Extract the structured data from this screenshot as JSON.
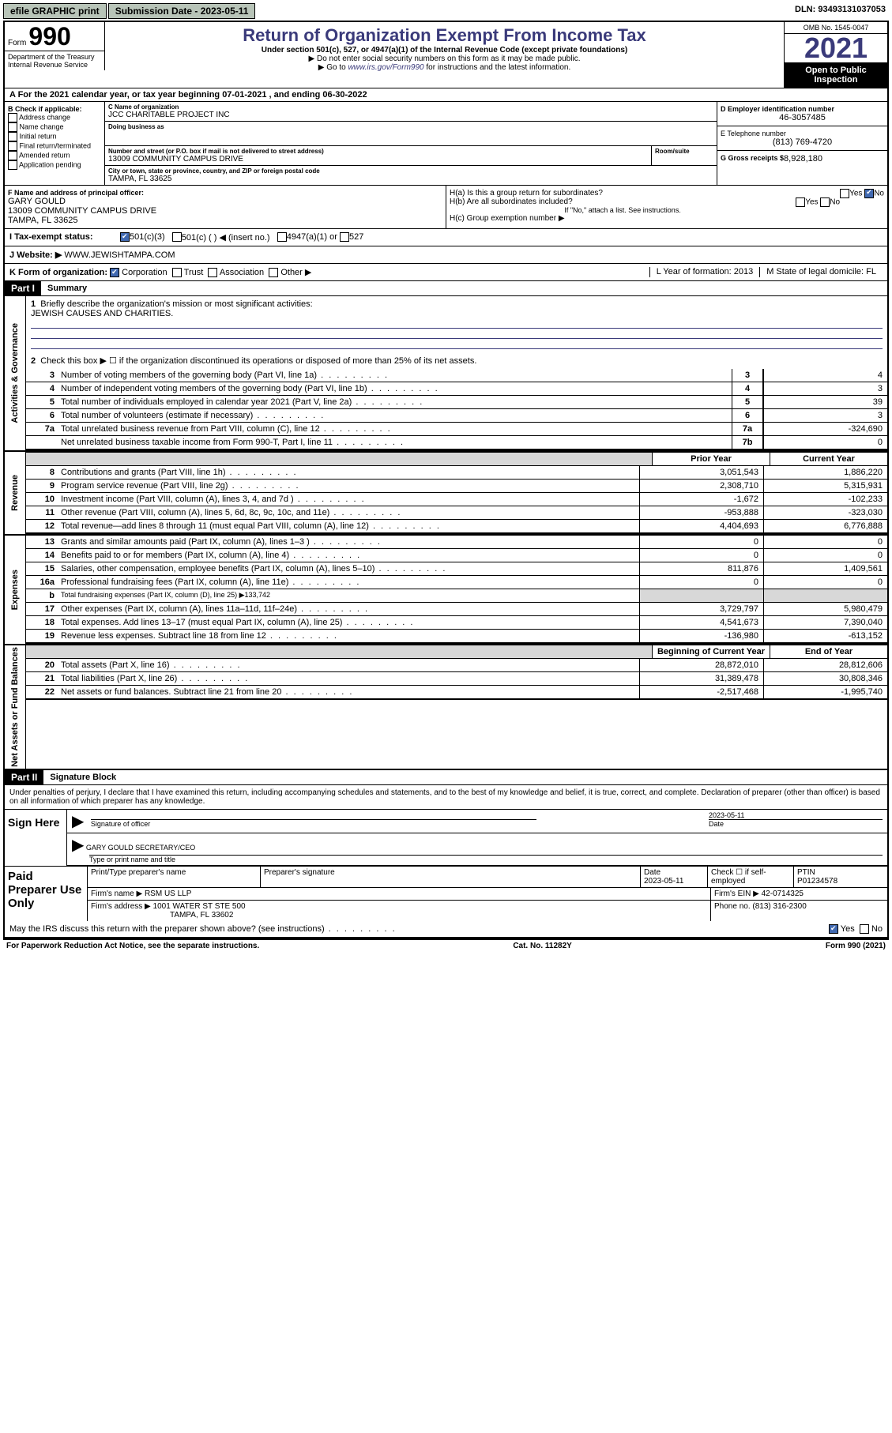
{
  "topbar": {
    "btn1": "efile GRAPHIC print",
    "sub_label": "Submission Date - 2023-05-11",
    "dln": "DLN: 93493131037053"
  },
  "header": {
    "form_label": "Form",
    "form_num": "990",
    "dept": "Department of the Treasury\nInternal Revenue Service",
    "title": "Return of Organization Exempt From Income Tax",
    "subtitle": "Under section 501(c), 527, or 4947(a)(1) of the Internal Revenue Code (except private foundations)",
    "note1": "▶ Do not enter social security numbers on this form as it may be made public.",
    "note2_pre": "▶ Go to ",
    "note2_link": "www.irs.gov/Form990",
    "note2_post": " for instructions and the latest information.",
    "omb": "OMB No. 1545-0047",
    "year": "2021",
    "inspection": "Open to Public Inspection"
  },
  "lineA": "A For the 2021 calendar year, or tax year beginning 07-01-2021   , and ending 06-30-2022",
  "sectionB": {
    "label": "B Check if applicable:",
    "opts": [
      "Address change",
      "Name change",
      "Initial return",
      "Final return/terminated",
      "Amended return",
      "Application pending"
    ],
    "c_label": "C Name of organization",
    "c_name": "JCC CHARITABLE PROJECT INC",
    "dba_label": "Doing business as",
    "addr_label": "Number and street (or P.O. box if mail is not delivered to street address)",
    "room_label": "Room/suite",
    "addr": "13009 COMMUNITY CAMPUS DRIVE",
    "city_label": "City or town, state or province, country, and ZIP or foreign postal code",
    "city": "TAMPA, FL  33625",
    "d_label": "D Employer identification number",
    "ein": "46-3057485",
    "e_label": "E Telephone number",
    "phone": "(813) 769-4720",
    "g_label": "G Gross receipts $",
    "g_val": "8,928,180",
    "f_label": "F Name and address of principal officer:",
    "f_name": "GARY GOULD",
    "f_addr": "13009 COMMUNITY CAMPUS DRIVE",
    "f_city": "TAMPA, FL  33625",
    "ha_label": "H(a)  Is this a group return for subordinates?",
    "hb_label": "H(b)  Are all subordinates included?",
    "hb_note": "If \"No,\" attach a list. See instructions.",
    "hc_label": "H(c)  Group exemption number ▶",
    "yes": "Yes",
    "no": "No"
  },
  "taxRow": {
    "i_label": "I   Tax-exempt status:",
    "opt1": "501(c)(3)",
    "opt2": "501(c) (   ) ◀ (insert no.)",
    "opt3": "4947(a)(1) or",
    "opt4": "527"
  },
  "webRow": {
    "label": "J   Website: ▶",
    "val": "WWW.JEWISHTAMPA.COM"
  },
  "formOrg": {
    "k_label": "K Form of organization:",
    "corp": "Corporation",
    "trust": "Trust",
    "assoc": "Association",
    "other": "Other ▶",
    "l_label": "L Year of formation: 2013",
    "m_label": "M State of legal domicile: FL"
  },
  "part1": {
    "tag": "Part I",
    "title": "Summary",
    "q1": "Briefly describe the organization's mission or most significant activities:",
    "mission": "JEWISH CAUSES AND CHARITIES.",
    "q2": "Check this box ▶ ☐  if the organization discontinued its operations or disposed of more than 25% of its net assets.",
    "vert_gov": "Activities & Governance",
    "vert_rev": "Revenue",
    "vert_exp": "Expenses",
    "vert_net": "Net Assets or Fund Balances",
    "prior": "Prior Year",
    "current": "Current Year",
    "begin": "Beginning of Current Year",
    "end": "End of Year",
    "rows_gov": [
      {
        "n": "3",
        "t": "Number of voting members of the governing body (Part VI, line 1a)",
        "box": "3",
        "v2": "4"
      },
      {
        "n": "4",
        "t": "Number of independent voting members of the governing body (Part VI, line 1b)",
        "box": "4",
        "v2": "3"
      },
      {
        "n": "5",
        "t": "Total number of individuals employed in calendar year 2021 (Part V, line 2a)",
        "box": "5",
        "v2": "39"
      },
      {
        "n": "6",
        "t": "Total number of volunteers (estimate if necessary)",
        "box": "6",
        "v2": "3"
      },
      {
        "n": "7a",
        "t": "Total unrelated business revenue from Part VIII, column (C), line 12",
        "box": "7a",
        "v2": "-324,690"
      },
      {
        "n": "",
        "t": "Net unrelated business taxable income from Form 990-T, Part I, line 11",
        "box": "7b",
        "v2": "0"
      }
    ],
    "rows_rev": [
      {
        "n": "8",
        "t": "Contributions and grants (Part VIII, line 1h)",
        "v1": "3,051,543",
        "v2": "1,886,220"
      },
      {
        "n": "9",
        "t": "Program service revenue (Part VIII, line 2g)",
        "v1": "2,308,710",
        "v2": "5,315,931"
      },
      {
        "n": "10",
        "t": "Investment income (Part VIII, column (A), lines 3, 4, and 7d )",
        "v1": "-1,672",
        "v2": "-102,233"
      },
      {
        "n": "11",
        "t": "Other revenue (Part VIII, column (A), lines 5, 6d, 8c, 9c, 10c, and 11e)",
        "v1": "-953,888",
        "v2": "-323,030"
      },
      {
        "n": "12",
        "t": "Total revenue—add lines 8 through 11 (must equal Part VIII, column (A), line 12)",
        "v1": "4,404,693",
        "v2": "6,776,888"
      }
    ],
    "rows_exp": [
      {
        "n": "13",
        "t": "Grants and similar amounts paid (Part IX, column (A), lines 1–3 )",
        "v1": "0",
        "v2": "0"
      },
      {
        "n": "14",
        "t": "Benefits paid to or for members (Part IX, column (A), line 4)",
        "v1": "0",
        "v2": "0"
      },
      {
        "n": "15",
        "t": "Salaries, other compensation, employee benefits (Part IX, column (A), lines 5–10)",
        "v1": "811,876",
        "v2": "1,409,561"
      },
      {
        "n": "16a",
        "t": "Professional fundraising fees (Part IX, column (A), line 11e)",
        "v1": "0",
        "v2": "0"
      },
      {
        "n": "b",
        "t": "Total fundraising expenses (Part IX, column (D), line 25) ▶133,742",
        "grey": true
      },
      {
        "n": "17",
        "t": "Other expenses (Part IX, column (A), lines 11a–11d, 11f–24e)",
        "v1": "3,729,797",
        "v2": "5,980,479"
      },
      {
        "n": "18",
        "t": "Total expenses. Add lines 13–17 (must equal Part IX, column (A), line 25)",
        "v1": "4,541,673",
        "v2": "7,390,040"
      },
      {
        "n": "19",
        "t": "Revenue less expenses. Subtract line 18 from line 12",
        "v1": "-136,980",
        "v2": "-613,152"
      }
    ],
    "rows_net": [
      {
        "n": "20",
        "t": "Total assets (Part X, line 16)",
        "v1": "28,872,010",
        "v2": "28,812,606"
      },
      {
        "n": "21",
        "t": "Total liabilities (Part X, line 26)",
        "v1": "31,389,478",
        "v2": "30,808,346"
      },
      {
        "n": "22",
        "t": "Net assets or fund balances. Subtract line 21 from line 20",
        "v1": "-2,517,468",
        "v2": "-1,995,740"
      }
    ]
  },
  "part2": {
    "tag": "Part II",
    "title": "Signature Block",
    "decl": "Under penalties of perjury, I declare that I have examined this return, including accompanying schedules and statements, and to the best of my knowledge and belief, it is true, correct, and complete. Declaration of preparer (other than officer) is based on all information of which preparer has any knowledge.",
    "sign_here": "Sign Here",
    "sig_officer": "Signature of officer",
    "sig_date": "Date",
    "sig_date_val": "2023-05-11",
    "officer_name": "GARY GOULD  SECRETARY/CEO",
    "type_name": "Type or print name and title",
    "paid": "Paid Preparer Use Only",
    "prep_name_label": "Print/Type preparer's name",
    "prep_sig_label": "Preparer's signature",
    "date_label": "Date",
    "date_val": "2023-05-11",
    "check_label": "Check ☐ if self-employed",
    "ptin_label": "PTIN",
    "ptin": "P01234578",
    "firm_name_label": "Firm's name    ▶",
    "firm_name": "RSM US LLP",
    "firm_ein_label": "Firm's EIN ▶",
    "firm_ein": "42-0714325",
    "firm_addr_label": "Firm's address ▶",
    "firm_addr": "1001 WATER ST STE 500",
    "firm_city": "TAMPA, FL  33602",
    "phone_label": "Phone no.",
    "phone": "(813) 316-2300",
    "may_irs": "May the IRS discuss this return with the preparer shown above? (see instructions)",
    "yes": "Yes",
    "no": "No"
  },
  "footer": {
    "left": "For Paperwork Reduction Act Notice, see the separate instructions.",
    "mid": "Cat. No. 11282Y",
    "right": "Form 990 (2021)"
  }
}
